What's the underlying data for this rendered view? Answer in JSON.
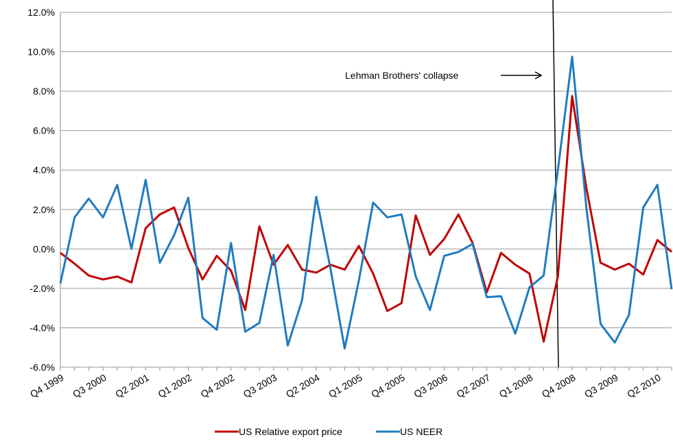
{
  "chart_data": {
    "type": "line",
    "categories": [
      "Q4 1999",
      null,
      null,
      "Q3 2000",
      null,
      null,
      "Q2 2001",
      null,
      null,
      "Q1 2002",
      null,
      null,
      "Q4 2002",
      null,
      null,
      "Q3 2003",
      null,
      null,
      "Q2 2004",
      null,
      null,
      "Q1 2005",
      null,
      null,
      "Q4 2005",
      null,
      null,
      "Q3 2006",
      null,
      null,
      "Q2 2007",
      null,
      null,
      "Q1 2008",
      null,
      null,
      "Q4 2008",
      null,
      null,
      "Q3 2009",
      null,
      null,
      "Q2 2010",
      null
    ],
    "series": [
      {
        "name": "US Relative export price",
        "color": "#c00000",
        "values": [
          -0.2,
          -0.75,
          -1.35,
          -1.55,
          -1.4,
          -1.7,
          1.05,
          1.75,
          2.1,
          0.05,
          -1.55,
          -0.35,
          -1.1,
          -3.1,
          1.15,
          -0.8,
          0.2,
          -1.05,
          -1.2,
          -0.8,
          -1.05,
          0.15,
          -1.25,
          -3.15,
          -2.75,
          1.7,
          -0.3,
          0.5,
          1.75,
          0.3,
          -2.2,
          -0.2,
          -0.8,
          -1.25,
          -4.7,
          -1.4,
          7.75,
          3.1,
          -0.7,
          -1.05,
          -0.75,
          -1.3,
          0.45,
          -0.15
        ]
      },
      {
        "name": "US NEER",
        "color": "#1f7bc0",
        "values": [
          -1.75,
          1.6,
          2.55,
          1.6,
          3.25,
          0.0,
          3.5,
          -0.7,
          0.7,
          2.6,
          -3.5,
          -4.1,
          0.3,
          -4.2,
          -3.75,
          -0.3,
          -4.9,
          -2.6,
          2.65,
          -1.0,
          -5.05,
          -1.6,
          2.35,
          1.6,
          1.75,
          -1.4,
          -3.1,
          -0.35,
          -0.15,
          0.25,
          -2.45,
          -2.4,
          -4.3,
          -1.95,
          -1.35,
          4.0,
          9.75,
          2.1,
          -3.8,
          -4.75,
          -3.35,
          2.1,
          3.25,
          -2.05
        ]
      }
    ],
    "ylim": [
      -6,
      12
    ],
    "yticks": [
      {
        "value": -6,
        "label": "-6.0%"
      },
      {
        "value": -4,
        "label": "-4.0%"
      },
      {
        "value": -2,
        "label": "-2.0%"
      },
      {
        "value": 0,
        "label": "0.0%"
      },
      {
        "value": 2,
        "label": "2.0%"
      },
      {
        "value": 4,
        "label": "4.0%"
      },
      {
        "value": 6,
        "label": "6.0%"
      },
      {
        "value": 8,
        "label": "8.0%"
      },
      {
        "value": 10,
        "label": "10.0%"
      },
      {
        "value": 12,
        "label": "12.0%"
      }
    ],
    "grid": true,
    "annotation": "Lehman Brothers' collapse"
  }
}
